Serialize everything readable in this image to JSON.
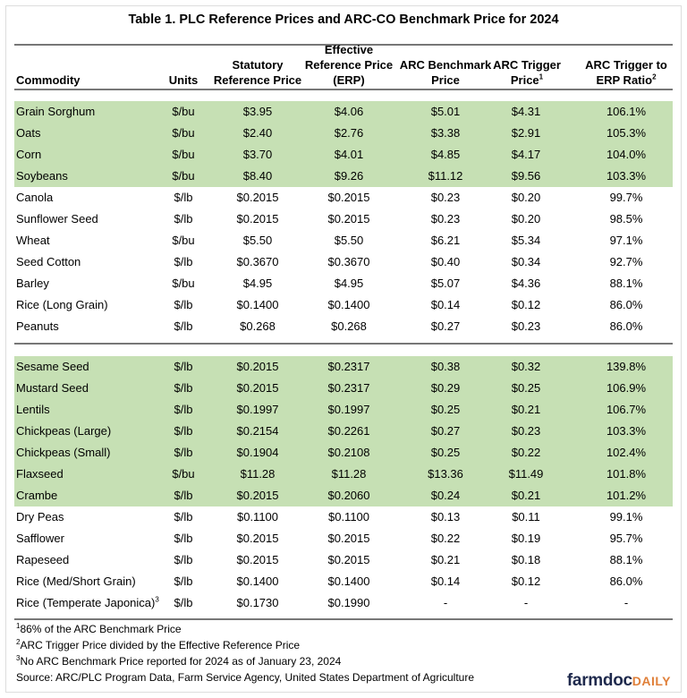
{
  "title": "Table 1. PLC Reference Prices and ARC-CO Benchmark Price for 2024",
  "headers": {
    "commodity": "Commodity",
    "units": "Units",
    "statutory": [
      "Statutory",
      "Reference Price"
    ],
    "erp": [
      "Effective",
      "Reference Price",
      "(ERP)"
    ],
    "benchmark": [
      "ARC Benchmark",
      "Price"
    ],
    "trigger": [
      "ARC Trigger",
      "Price"
    ],
    "trigger_sup": "1",
    "ratio": [
      "ARC Trigger to",
      "ERP Ratio"
    ],
    "ratio_sup": "2"
  },
  "highlight_color": "#c6e0b4",
  "group1": [
    [
      "Grain Sorghum",
      "$/bu",
      "$3.95",
      "$4.06",
      "$5.01",
      "$4.31",
      "106.1%"
    ],
    [
      "Oats",
      "$/bu",
      "$2.40",
      "$2.76",
      "$3.38",
      "$2.91",
      "105.3%"
    ],
    [
      "Corn",
      "$/bu",
      "$3.70",
      "$4.01",
      "$4.85",
      "$4.17",
      "104.0%"
    ],
    [
      "Soybeans",
      "$/bu",
      "$8.40",
      "$9.26",
      "$11.12",
      "$9.56",
      "103.3%"
    ],
    [
      "Canola",
      "$/lb",
      "$0.2015",
      "$0.2015",
      "$0.23",
      "$0.20",
      "99.7%"
    ],
    [
      "Sunflower Seed",
      "$/lb",
      "$0.2015",
      "$0.2015",
      "$0.23",
      "$0.20",
      "98.5%"
    ],
    [
      "Wheat",
      "$/bu",
      "$5.50",
      "$5.50",
      "$6.21",
      "$5.34",
      "97.1%"
    ],
    [
      "Seed Cotton",
      "$/lb",
      "$0.3670",
      "$0.3670",
      "$0.40",
      "$0.34",
      "92.7%"
    ],
    [
      "Barley",
      "$/bu",
      "$4.95",
      "$4.95",
      "$5.07",
      "$4.36",
      "88.1%"
    ],
    [
      "Rice (Long Grain)",
      "$/lb",
      "$0.1400",
      "$0.1400",
      "$0.14",
      "$0.12",
      "86.0%"
    ],
    [
      "Peanuts",
      "$/lb",
      "$0.268",
      "$0.268",
      "$0.27",
      "$0.23",
      "86.0%"
    ]
  ],
  "group2": [
    [
      "Sesame Seed",
      "$/lb",
      "$0.2015",
      "$0.2317",
      "$0.38",
      "$0.32",
      "139.8%"
    ],
    [
      "Mustard Seed",
      "$/lb",
      "$0.2015",
      "$0.2317",
      "$0.29",
      "$0.25",
      "106.9%"
    ],
    [
      "Lentils",
      "$/lb",
      "$0.1997",
      "$0.1997",
      "$0.25",
      "$0.21",
      "106.7%"
    ],
    [
      "Chickpeas (Large)",
      "$/lb",
      "$0.2154",
      "$0.2261",
      "$0.27",
      "$0.23",
      "103.3%"
    ],
    [
      "Chickpeas (Small)",
      "$/lb",
      "$0.1904",
      "$0.2108",
      "$0.25",
      "$0.22",
      "102.4%"
    ],
    [
      "Flaxseed",
      "$/bu",
      "$11.28",
      "$11.28",
      "$13.36",
      "$11.49",
      "101.8%"
    ],
    [
      "Crambe",
      "$/lb",
      "$0.2015",
      "$0.2060",
      "$0.24",
      "$0.21",
      "101.2%"
    ],
    [
      "Dry Peas",
      "$/lb",
      "$0.1100",
      "$0.1100",
      "$0.13",
      "$0.11",
      "99.1%"
    ],
    [
      "Safflower",
      "$/lb",
      "$0.2015",
      "$0.2015",
      "$0.22",
      "$0.19",
      "95.7%"
    ],
    [
      "Rapeseed",
      "$/lb",
      "$0.2015",
      "$0.2015",
      "$0.21",
      "$0.18",
      "88.1%"
    ],
    [
      "Rice (Med/Short Grain)",
      "$/lb",
      "$0.1400",
      "$0.1400",
      "$0.14",
      "$0.12",
      "86.0%"
    ],
    [
      "Rice (Temperate Japonica)",
      "$/lb",
      "$0.1730",
      "$0.1990",
      "-",
      "-",
      "-"
    ]
  ],
  "last_row_sup": "3",
  "footnotes": [
    {
      "sup": "1",
      "text": "86% of the ARC Benchmark Price"
    },
    {
      "sup": "2",
      "text": "ARC Trigger Price divided by the Effective Reference Price"
    },
    {
      "sup": "3",
      "text": "No ARC Benchmark Price reported for 2024 as of January 23, 2024"
    },
    {
      "sup": "",
      "text": "Source: ARC/PLC Program Data, Farm Service Agency, United States Department of Agriculture"
    }
  ],
  "logo": {
    "main": "farmdoc",
    "accent": "DAILY"
  }
}
